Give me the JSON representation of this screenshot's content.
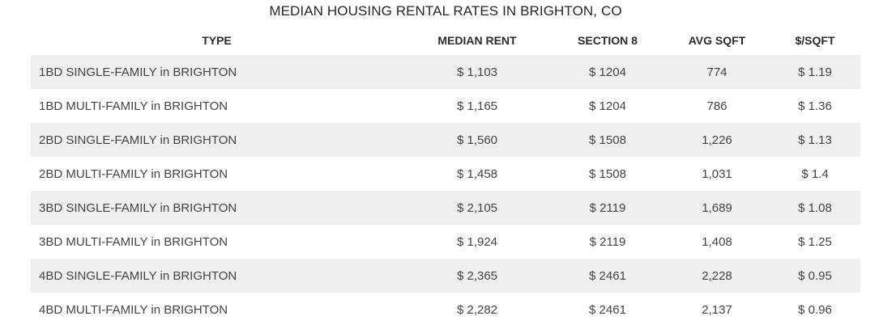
{
  "chart_data": {
    "type": "table",
    "title": "MEDIAN HOUSING RENTAL RATES IN BRIGHTON, CO",
    "columns": [
      "TYPE",
      "MEDIAN RENT",
      "SECTION 8",
      "AVG SQFT",
      "$/SQFT"
    ],
    "rows": [
      [
        "1BD SINGLE-FAMILY in BRIGHTON",
        "$ 1,103",
        "$ 1204",
        "774",
        "$ 1.19"
      ],
      [
        "1BD MULTI-FAMILY in BRIGHTON",
        "$ 1,165",
        "$ 1204",
        "786",
        "$ 1.36"
      ],
      [
        "2BD SINGLE-FAMILY in BRIGHTON",
        "$ 1,560",
        "$ 1508",
        "1,226",
        "$ 1.13"
      ],
      [
        "2BD MULTI-FAMILY in BRIGHTON",
        "$ 1,458",
        "$ 1508",
        "1,031",
        "$ 1.4"
      ],
      [
        "3BD SINGLE-FAMILY in BRIGHTON",
        "$ 2,105",
        "$ 2119",
        "1,689",
        "$ 1.08"
      ],
      [
        "3BD MULTI-FAMILY in BRIGHTON",
        "$ 1,924",
        "$ 2119",
        "1,408",
        "$ 1.25"
      ],
      [
        "4BD SINGLE-FAMILY in BRIGHTON",
        "$ 2,365",
        "$ 2461",
        "2,228",
        "$ 0.95"
      ],
      [
        "4BD MULTI-FAMILY in BRIGHTON",
        "$ 2,282",
        "$ 2461",
        "2,137",
        "$ 0.96"
      ]
    ],
    "values": {
      "median_rent": [
        1103,
        1165,
        1560,
        1458,
        2105,
        1924,
        2365,
        2282
      ],
      "section_8": [
        1204,
        1204,
        1508,
        1508,
        2119,
        2119,
        2461,
        2461
      ],
      "avg_sqft": [
        774,
        786,
        1226,
        1031,
        1689,
        1408,
        2228,
        2137
      ],
      "price_per_sqft": [
        1.19,
        1.36,
        1.13,
        1.4,
        1.08,
        1.25,
        0.95,
        0.96
      ]
    },
    "row_shading": "alternating",
    "shade_color": "#efefef"
  }
}
